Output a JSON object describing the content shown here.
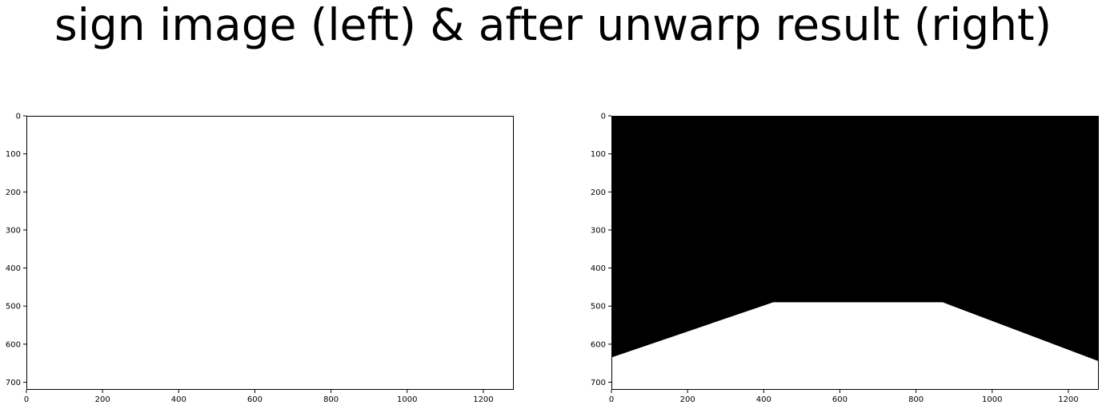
{
  "figure": {
    "title": "sign image (left) & after unwarp result (right)"
  },
  "chart_data": [
    {
      "type": "image",
      "content": "blank (all white)",
      "xlim": [
        0,
        1280
      ],
      "ylim": [
        720,
        0
      ],
      "x_ticks": [
        0,
        200,
        400,
        600,
        800,
        1000,
        1200
      ],
      "y_ticks": [
        0,
        100,
        200,
        300,
        400,
        500,
        600,
        700
      ],
      "colors": {
        "background": "#ffffff"
      }
    },
    {
      "type": "image",
      "content": "black background with white trapezoid region at bottom",
      "xlim": [
        0,
        1280
      ],
      "ylim": [
        720,
        0
      ],
      "x_ticks": [
        0,
        200,
        400,
        600,
        800,
        1000,
        1200
      ],
      "y_ticks": [
        0,
        100,
        200,
        300,
        400,
        500,
        600,
        700
      ],
      "white_region_polygon": [
        [
          0,
          635
        ],
        [
          425,
          490
        ],
        [
          870,
          490
        ],
        [
          1280,
          645
        ],
        [
          1280,
          720
        ],
        [
          0,
          720
        ]
      ],
      "colors": {
        "background": "#000000",
        "region": "#ffffff"
      }
    }
  ]
}
